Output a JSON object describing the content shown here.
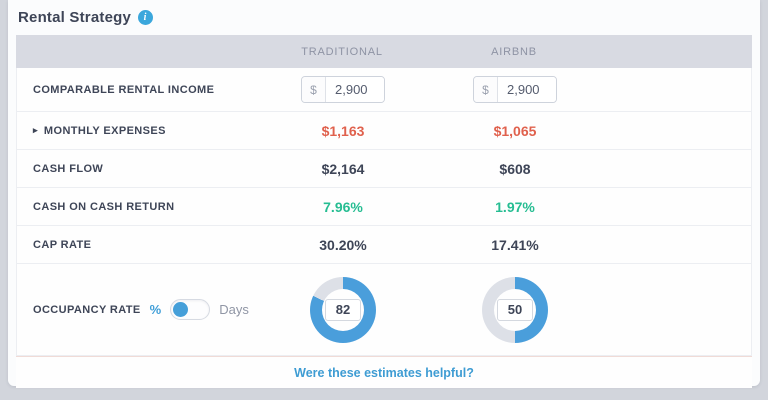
{
  "colors": {
    "accent_blue": "#459fd9",
    "positive_green": "#26bd92",
    "negative_red": "#e0614d",
    "donut_fill": "#4a9edb",
    "donut_track": "#dde0e7",
    "header_band": "#d8dae2"
  },
  "panel": {
    "title": "Rental Strategy",
    "info_icon_glyph": "i",
    "footer_link": "Were these estimates helpful?"
  },
  "table": {
    "columns": [
      "TRADITIONAL",
      "AIRBNB"
    ],
    "rows": {
      "rental_income": {
        "label": "COMPARABLE RENTAL INCOME",
        "prefix": "$",
        "values": [
          "2,900",
          "2,900"
        ]
      },
      "monthly_expenses": {
        "label": "MONTHLY EXPENSES",
        "expander_glyph": "▸",
        "values": [
          "$1,163",
          "$1,065"
        ]
      },
      "cash_flow": {
        "label": "CASH FLOW",
        "values": [
          "$2,164",
          "$608"
        ]
      },
      "cash_on_cash": {
        "label": "CASH ON CASH RETURN",
        "values": [
          "7.96%",
          "1.97%"
        ]
      },
      "cap_rate": {
        "label": "CAP RATE",
        "values": [
          "30.20%",
          "17.41%"
        ]
      },
      "occupancy": {
        "label": "OCCUPANCY RATE",
        "toggle_left": "%",
        "toggle_right": "Days",
        "selected": "%",
        "values": [
          82,
          50
        ]
      }
    }
  },
  "chart_data": [
    {
      "type": "pie",
      "title": "Traditional occupancy rate",
      "labels": [
        "occupied",
        "remaining"
      ],
      "values": [
        82,
        18
      ],
      "center_label": "82",
      "unit": "%",
      "colors": [
        "#4a9edb",
        "#dde0e7"
      ]
    },
    {
      "type": "pie",
      "title": "Airbnb occupancy rate",
      "labels": [
        "occupied",
        "remaining"
      ],
      "values": [
        50,
        50
      ],
      "center_label": "50",
      "unit": "%",
      "colors": [
        "#4a9edb",
        "#dde0e7"
      ]
    }
  ]
}
